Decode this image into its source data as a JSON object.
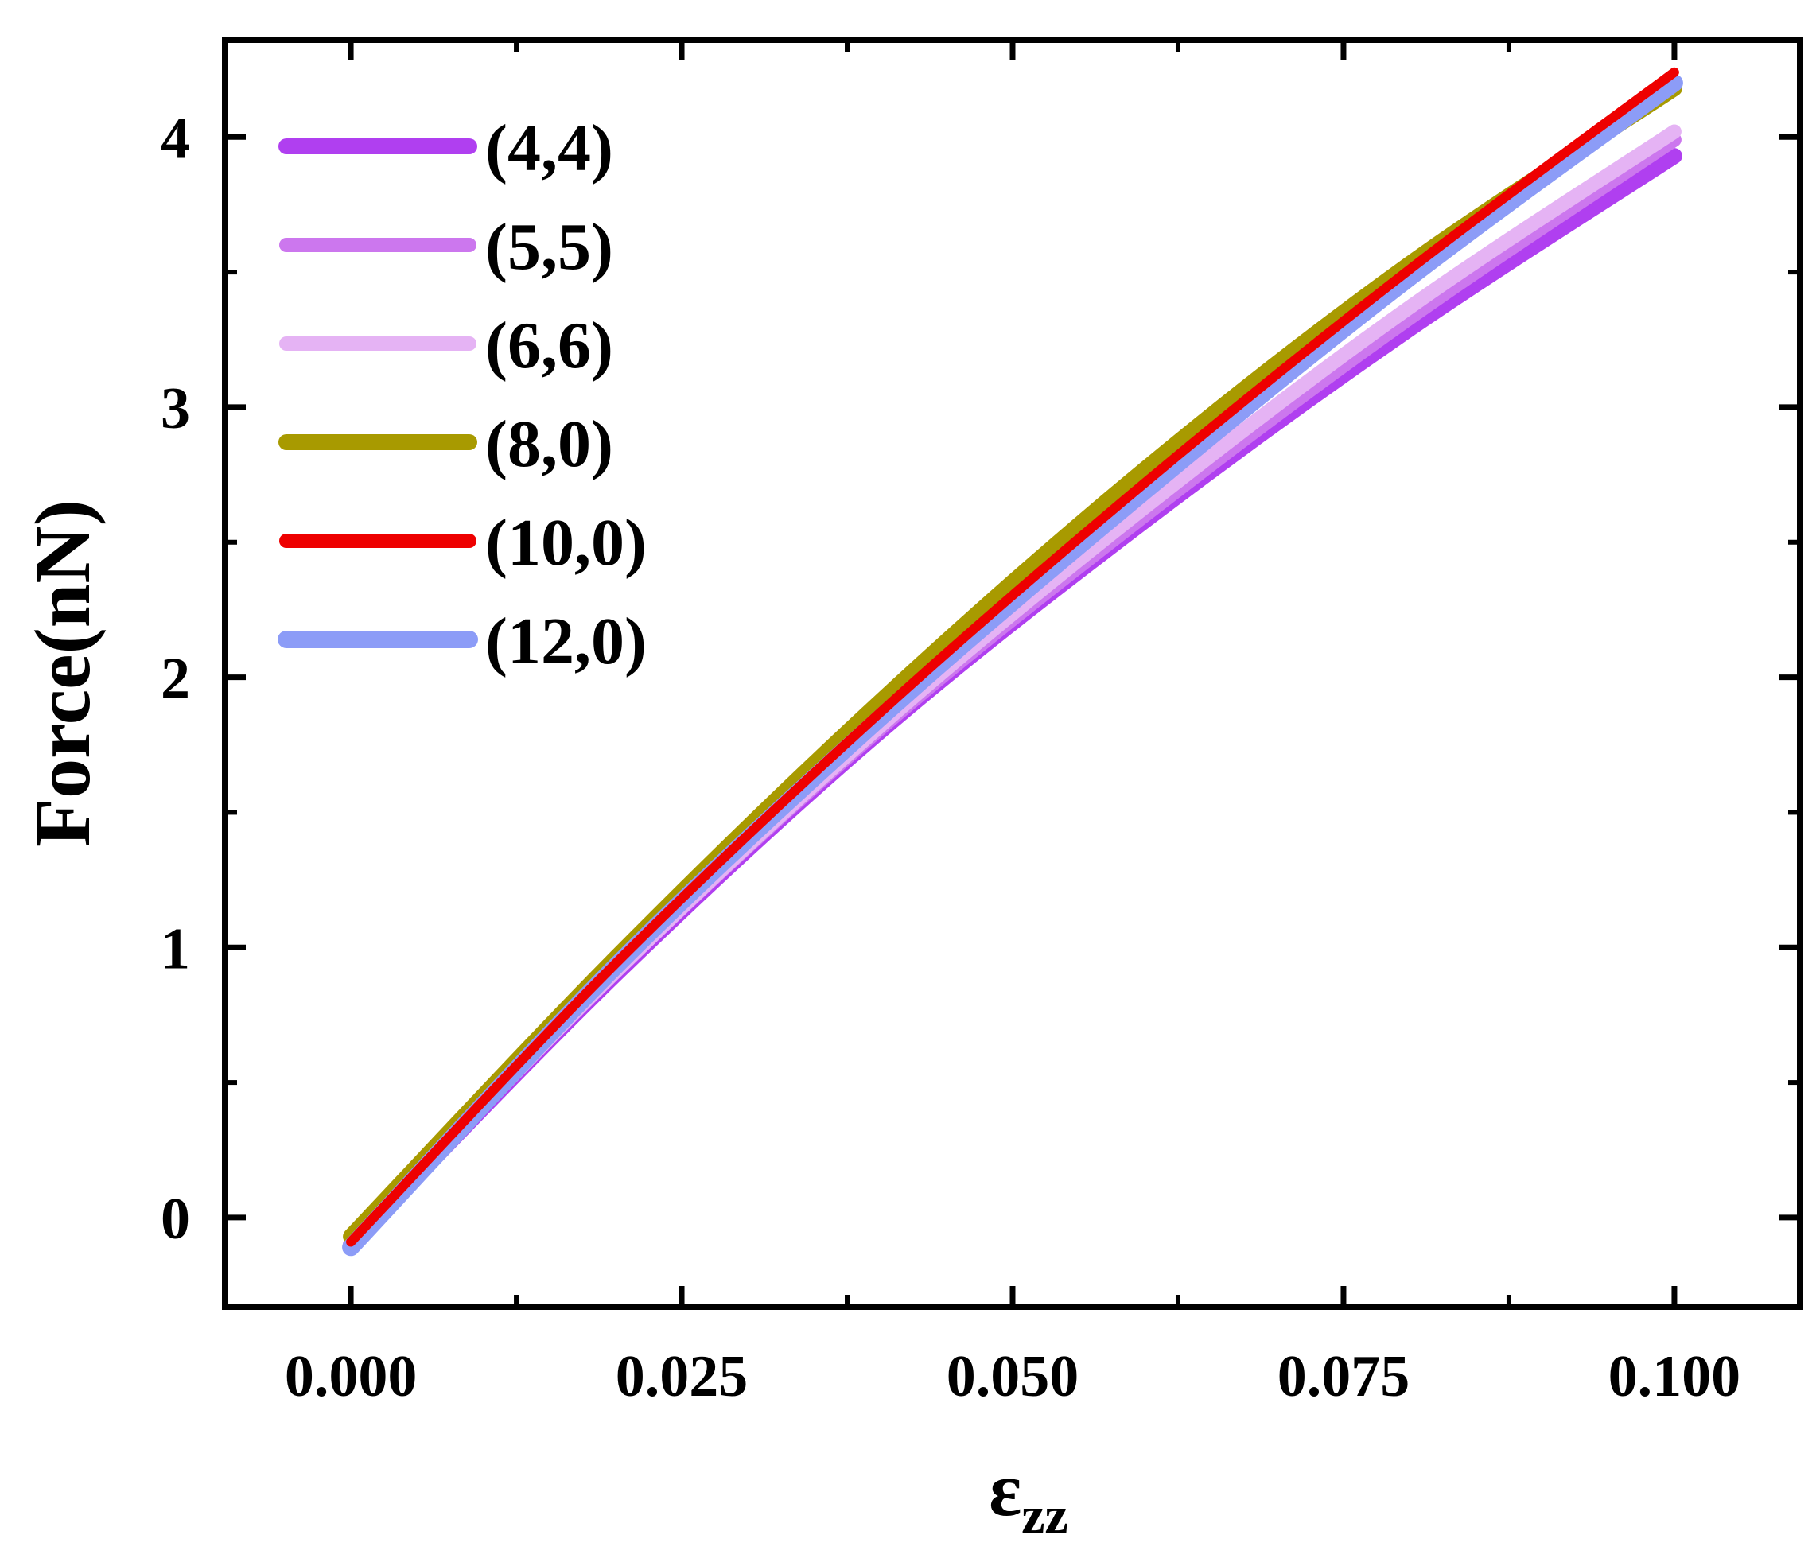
{
  "chart_data": {
    "type": "line",
    "xlabel": "ε",
    "xlabel_sub": "zz",
    "ylabel": "Force(nN)",
    "xlim": [
      -0.0095,
      0.1095
    ],
    "ylim": [
      -0.33,
      4.36
    ],
    "xticks": [
      0.0,
      0.025,
      0.05,
      0.075,
      0.1
    ],
    "xtick_labels": [
      "0.000",
      "0.025",
      "0.050",
      "0.075",
      "0.100"
    ],
    "yticks": [
      0,
      1,
      2,
      3,
      4
    ],
    "ytick_labels": [
      "0",
      "1",
      "2",
      "3",
      "4"
    ],
    "legend_position": "top-left",
    "grid": false,
    "series": [
      {
        "name": "(4,4)",
        "color": "#b03ff0",
        "x": [
          0,
          0.02,
          0.04,
          0.06,
          0.08,
          0.1
        ],
        "values": [
          -0.1,
          0.9,
          1.8,
          2.58,
          3.29,
          3.93
        ]
      },
      {
        "name": "(5,5)",
        "color": "#cc77ee",
        "x": [
          0,
          0.02,
          0.04,
          0.06,
          0.08,
          0.1
        ],
        "values": [
          -0.1,
          0.91,
          1.81,
          2.6,
          3.33,
          3.99
        ]
      },
      {
        "name": "(6,6)",
        "color": "#e5b3f4",
        "x": [
          0,
          0.02,
          0.04,
          0.06,
          0.08,
          0.1
        ],
        "values": [
          -0.1,
          0.91,
          1.82,
          2.63,
          3.37,
          4.02
        ]
      },
      {
        "name": "(8,0)",
        "color": "#a89a00",
        "x": [
          0,
          0.02,
          0.04,
          0.06,
          0.08,
          0.1
        ],
        "values": [
          -0.07,
          0.96,
          1.91,
          2.77,
          3.53,
          4.18
        ]
      },
      {
        "name": "(10,0)",
        "color": "#ee0000",
        "x": [
          0,
          0.02,
          0.04,
          0.06,
          0.08,
          0.1
        ],
        "values": [
          -0.09,
          0.94,
          1.87,
          2.72,
          3.51,
          4.24
        ]
      },
      {
        "name": "(12,0)",
        "color": "#8c9cf7",
        "x": [
          0,
          0.02,
          0.04,
          0.06,
          0.08,
          0.1
        ],
        "values": [
          -0.11,
          0.93,
          1.85,
          2.69,
          3.48,
          4.2
        ]
      }
    ]
  }
}
